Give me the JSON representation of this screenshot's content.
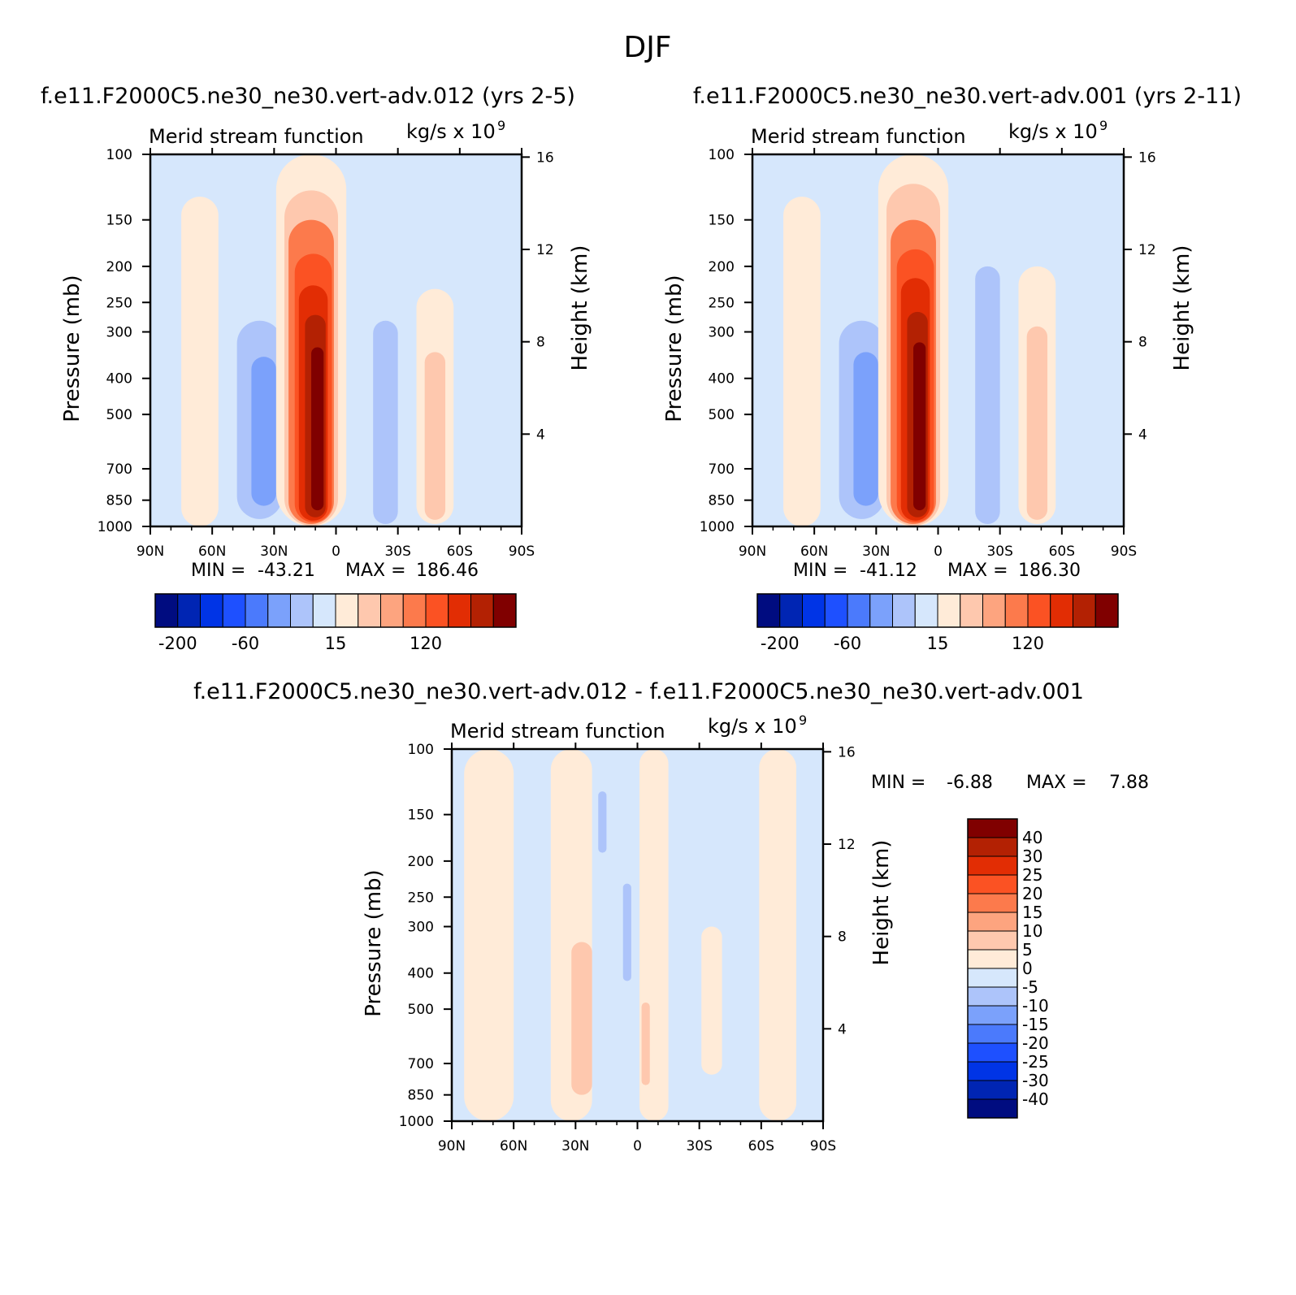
{
  "page_title": "DJF",
  "colors": {
    "levels_main": [
      "#000c80",
      "#0025b3",
      "#0034e6",
      "#1e50ff",
      "#4b7afc",
      "#7ba1fb",
      "#adc4fa",
      "#d6e7fc",
      "#ffebd8",
      "#fec8ae",
      "#fda47f",
      "#fc7a4c",
      "#fb5223",
      "#e22d04",
      "#b32103",
      "#800000"
    ],
    "levels_diff": [
      "#000c80",
      "#0025b3",
      "#0034e6",
      "#1e50ff",
      "#4b7afc",
      "#7ba1fb",
      "#adc4fa",
      "#d6e7fc",
      "#ffebd8",
      "#fec8ae",
      "#fda47f",
      "#fc7a4c",
      "#fb5223",
      "#e22d04",
      "#b32103",
      "#800000"
    ]
  },
  "chart_data": [
    {
      "type": "heatmap",
      "case_title": "f.e11.F2000C5.ne30_ne30.vert-adv.012 (yrs 2-5)",
      "left_title": "Merid stream function",
      "right_title": "kg/s x 10",
      "right_title_exp": "9",
      "ylabel": "Pressure (mb)",
      "ylabel_right": "Height (km)",
      "x_ticks": [
        "90N",
        "60N",
        "30N",
        "0",
        "30S",
        "60S",
        "90S"
      ],
      "x_tick_values": [
        90,
        60,
        30,
        0,
        -30,
        -60,
        -90
      ],
      "y_ticks": [
        "100",
        "150",
        "200",
        "250",
        "300",
        "400",
        "500",
        "700",
        "850",
        "1000"
      ],
      "y_tick_values": [
        100,
        150,
        200,
        250,
        300,
        400,
        500,
        700,
        850,
        1000
      ],
      "y_right_ticks": [
        "16",
        "12",
        "8",
        "4"
      ],
      "y_right_tick_values": [
        16,
        12,
        8,
        4
      ],
      "ylim": [
        1000,
        100
      ],
      "xlim": [
        90,
        -90
      ],
      "min_label": "MIN =",
      "min_value": "-43.21",
      "max_label": "MAX =",
      "max_value": "186.46",
      "colorbar_labels": [
        "-200",
        "-60",
        "15",
        "120"
      ],
      "colorbar_label_box_index": [
        1,
        4,
        8,
        12
      ],
      "features": [
        {
          "lat": 66,
          "width": 9,
          "p_top": 130,
          "p_bottom": 1000,
          "value": 5
        },
        {
          "lat": 36,
          "width": 19,
          "p_top": 190,
          "p_bottom": 985,
          "value": -5
        },
        {
          "lat": 37,
          "width": 11,
          "p_top": 280,
          "p_bottom": 955,
          "value": -20
        },
        {
          "lat": 35,
          "width": 6,
          "p_top": 350,
          "p_bottom": 880,
          "value": -40
        },
        {
          "lat": 12,
          "width": 17,
          "p_top": 100,
          "p_bottom": 1000,
          "value": 10
        },
        {
          "lat": 12,
          "width": 13,
          "p_top": 125,
          "p_bottom": 995,
          "value": 30
        },
        {
          "lat": 12,
          "width": 11,
          "p_top": 150,
          "p_bottom": 985,
          "value": 60
        },
        {
          "lat": 11,
          "width": 9,
          "p_top": 185,
          "p_bottom": 975,
          "value": 90
        },
        {
          "lat": 11,
          "width": 7,
          "p_top": 225,
          "p_bottom": 965,
          "value": 120
        },
        {
          "lat": 10,
          "width": 5,
          "p_top": 270,
          "p_bottom": 945,
          "value": 150
        },
        {
          "lat": 9,
          "width": 3,
          "p_top": 330,
          "p_bottom": 905,
          "value": 170
        },
        {
          "lat": -26,
          "width": 9,
          "p_top": 100,
          "p_bottom": 1000,
          "value": -5
        },
        {
          "lat": -24,
          "width": 6,
          "p_top": 280,
          "p_bottom": 985,
          "value": -20
        },
        {
          "lat": -48,
          "width": 9,
          "p_top": 230,
          "p_bottom": 985,
          "value": 10
        },
        {
          "lat": -48,
          "width": 5,
          "p_top": 340,
          "p_bottom": 960,
          "value": 30
        }
      ]
    },
    {
      "type": "heatmap",
      "case_title": "f.e11.F2000C5.ne30_ne30.vert-adv.001 (yrs 2-11)",
      "left_title": "Merid stream function",
      "right_title": "kg/s x 10",
      "right_title_exp": "9",
      "ylabel": "Pressure (mb)",
      "ylabel_right": "Height (km)",
      "x_ticks": [
        "90N",
        "60N",
        "30N",
        "0",
        "30S",
        "60S",
        "90S"
      ],
      "x_tick_values": [
        90,
        60,
        30,
        0,
        -30,
        -60,
        -90
      ],
      "y_ticks": [
        "100",
        "150",
        "200",
        "250",
        "300",
        "400",
        "500",
        "700",
        "850",
        "1000"
      ],
      "y_tick_values": [
        100,
        150,
        200,
        250,
        300,
        400,
        500,
        700,
        850,
        1000
      ],
      "y_right_ticks": [
        "16",
        "12",
        "8",
        "4"
      ],
      "y_right_tick_values": [
        16,
        12,
        8,
        4
      ],
      "ylim": [
        1000,
        100
      ],
      "xlim": [
        90,
        -90
      ],
      "min_label": "MIN =",
      "min_value": "-41.12",
      "max_label": "MAX =",
      "max_value": "186.30",
      "colorbar_labels": [
        "-200",
        "-60",
        "15",
        "120"
      ],
      "colorbar_label_box_index": [
        1,
        4,
        8,
        12
      ],
      "features": [
        {
          "lat": 66,
          "width": 9,
          "p_top": 130,
          "p_bottom": 1000,
          "value": 5
        },
        {
          "lat": 36,
          "width": 19,
          "p_top": 190,
          "p_bottom": 985,
          "value": -5
        },
        {
          "lat": 37,
          "width": 11,
          "p_top": 280,
          "p_bottom": 955,
          "value": -20
        },
        {
          "lat": 35,
          "width": 6,
          "p_top": 340,
          "p_bottom": 880,
          "value": -40
        },
        {
          "lat": 12,
          "width": 17,
          "p_top": 100,
          "p_bottom": 1000,
          "value": 10
        },
        {
          "lat": 12,
          "width": 13,
          "p_top": 120,
          "p_bottom": 995,
          "value": 30
        },
        {
          "lat": 12,
          "width": 11,
          "p_top": 150,
          "p_bottom": 985,
          "value": 60
        },
        {
          "lat": 11,
          "width": 9,
          "p_top": 180,
          "p_bottom": 975,
          "value": 90
        },
        {
          "lat": 11,
          "width": 7,
          "p_top": 215,
          "p_bottom": 965,
          "value": 120
        },
        {
          "lat": 10,
          "width": 5,
          "p_top": 265,
          "p_bottom": 945,
          "value": 150
        },
        {
          "lat": 9,
          "width": 3,
          "p_top": 320,
          "p_bottom": 905,
          "value": 170
        },
        {
          "lat": -26,
          "width": 9,
          "p_top": 100,
          "p_bottom": 1000,
          "value": -5
        },
        {
          "lat": -24,
          "width": 6,
          "p_top": 200,
          "p_bottom": 985,
          "value": -20
        },
        {
          "lat": -48,
          "width": 9,
          "p_top": 200,
          "p_bottom": 985,
          "value": 10
        },
        {
          "lat": -48,
          "width": 5,
          "p_top": 290,
          "p_bottom": 960,
          "value": 30
        }
      ]
    },
    {
      "type": "heatmap",
      "case_title": "f.e11.F2000C5.ne30_ne30.vert-adv.012 - f.e11.F2000C5.ne30_ne30.vert-adv.001",
      "left_title": "Merid stream function",
      "right_title": "kg/s x 10",
      "right_title_exp": "9",
      "ylabel": "Pressure (mb)",
      "ylabel_right": "Height (km)",
      "x_ticks": [
        "90N",
        "60N",
        "30N",
        "0",
        "30S",
        "60S",
        "90S"
      ],
      "x_tick_values": [
        90,
        60,
        30,
        0,
        -30,
        -60,
        -90
      ],
      "y_ticks": [
        "100",
        "150",
        "200",
        "250",
        "300",
        "400",
        "500",
        "700",
        "850",
        "1000"
      ],
      "y_tick_values": [
        100,
        150,
        200,
        250,
        300,
        400,
        500,
        700,
        850,
        1000
      ],
      "y_right_ticks": [
        "16",
        "12",
        "8",
        "4"
      ],
      "y_right_tick_values": [
        16,
        12,
        8,
        4
      ],
      "ylim": [
        1000,
        100
      ],
      "xlim": [
        90,
        -90
      ],
      "min_label": "MIN =",
      "min_value": "-6.88",
      "max_label": "MAX =",
      "max_value": "7.88",
      "colorbar_labels": [
        "40",
        "30",
        "25",
        "20",
        "15",
        "10",
        "5",
        "0",
        "-5",
        "-10",
        "-15",
        "-20",
        "-25",
        "-30",
        "-40"
      ],
      "features": [
        {
          "lat": 72,
          "width": 12,
          "p_top": 100,
          "p_bottom": 1000,
          "value": 2
        },
        {
          "lat": 32,
          "width": 10,
          "p_top": 100,
          "p_bottom": 1000,
          "value": 2
        },
        {
          "lat": 27,
          "width": 5,
          "p_top": 330,
          "p_bottom": 850,
          "value": 7
        },
        {
          "lat": 17,
          "width": 2,
          "p_top": 130,
          "p_bottom": 190,
          "value": -7
        },
        {
          "lat": 5,
          "width": 2,
          "p_top": 230,
          "p_bottom": 420,
          "value": -7
        },
        {
          "lat": -8,
          "width": 7,
          "p_top": 100,
          "p_bottom": 1000,
          "value": 2
        },
        {
          "lat": -4,
          "width": 2,
          "p_top": 480,
          "p_bottom": 800,
          "value": 7
        },
        {
          "lat": -36,
          "width": 5,
          "p_top": 300,
          "p_bottom": 750,
          "value": 2
        },
        {
          "lat": -68,
          "width": 9,
          "p_top": 100,
          "p_bottom": 1000,
          "value": 2
        }
      ]
    }
  ]
}
